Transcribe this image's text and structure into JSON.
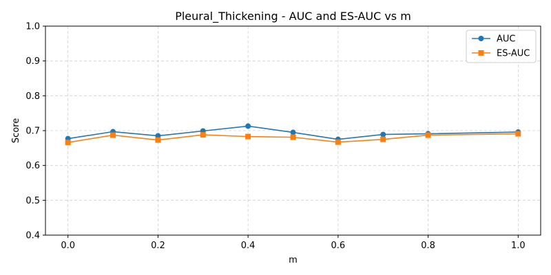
{
  "chart_data": {
    "type": "line",
    "title": "Pleural_Thickening - AUC and ES-AUC vs m",
    "xlabel": "m",
    "ylabel": "Score",
    "x": [
      0.0,
      0.1,
      0.2,
      0.3,
      0.4,
      0.5,
      0.6,
      0.7,
      0.8,
      1.0
    ],
    "xlim": [
      -0.05,
      1.05
    ],
    "ylim": [
      0.4,
      1.0
    ],
    "xticks": [
      "0.0",
      "0.2",
      "0.4",
      "0.6",
      "0.8",
      "1.0"
    ],
    "yticks": [
      "0.4",
      "0.5",
      "0.6",
      "0.7",
      "0.8",
      "0.9",
      "1.0"
    ],
    "grid": true,
    "legend_position": "top-right",
    "series": [
      {
        "name": "AUC",
        "color": "#1f77b4",
        "marker": "circle",
        "values": [
          0.677,
          0.697,
          0.685,
          0.699,
          0.713,
          0.695,
          0.675,
          0.689,
          0.691,
          0.696
        ]
      },
      {
        "name": "ES-AUC",
        "color": "#ff7f0e",
        "marker": "square",
        "values": [
          0.666,
          0.687,
          0.673,
          0.688,
          0.683,
          0.681,
          0.667,
          0.675,
          0.687,
          0.691
        ]
      }
    ]
  }
}
